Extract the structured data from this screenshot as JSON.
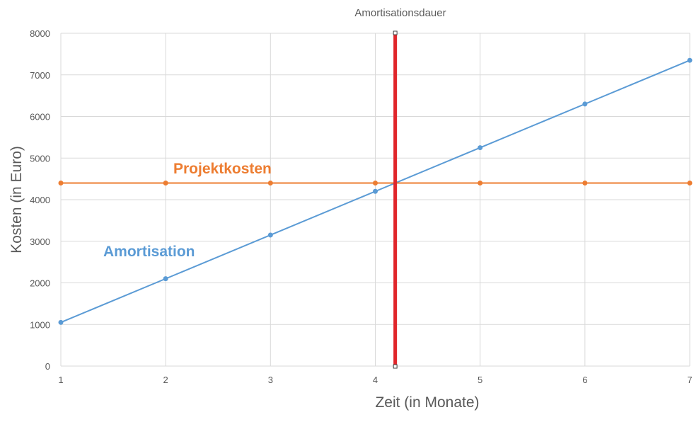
{
  "chart_data": {
    "type": "line",
    "title": "Amortisationsdauer",
    "xlabel": "Zeit (in Monate)",
    "ylabel": "Kosten (in Euro)",
    "x": [
      1,
      2,
      3,
      4,
      5,
      6,
      7
    ],
    "xlim": [
      1,
      7
    ],
    "ylim": [
      0,
      8000
    ],
    "x_ticks": [
      "1",
      "2",
      "3",
      "4",
      "5",
      "6",
      "7"
    ],
    "y_ticks": [
      "0",
      "1000",
      "2000",
      "3000",
      "4000",
      "5000",
      "6000",
      "7000",
      "8000"
    ],
    "grid": true,
    "series": [
      {
        "name": "Amortisation",
        "color": "#5B9BD5",
        "values": [
          1050,
          2100,
          3150,
          4200,
          5250,
          6300,
          7350
        ]
      },
      {
        "name": "Projektkosten",
        "color": "#ED7D31",
        "values": [
          4400,
          4400,
          4400,
          4400,
          4400,
          4400,
          4400
        ]
      }
    ],
    "break_even_marker": {
      "x": 4.19,
      "color": "#E0262B"
    }
  }
}
